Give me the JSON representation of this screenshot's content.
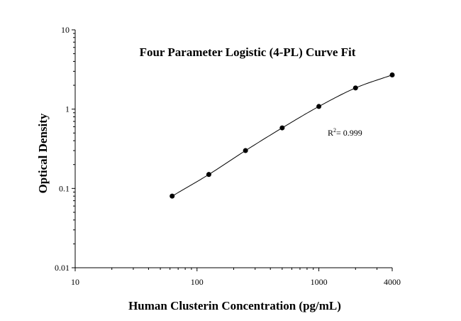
{
  "chart_data": {
    "type": "scatter",
    "title": "Four Parameter Logistic (4-PL) Curve Fit",
    "xlabel": "Human Clusterin Concentration (pg/mL)",
    "ylabel": "Optical Density",
    "xscale": "log",
    "yscale": "log",
    "xlim": [
      10,
      4000
    ],
    "ylim": [
      0.01,
      10
    ],
    "x_ticks": [
      "10",
      "100",
      "1000",
      "4000"
    ],
    "y_ticks": [
      "0.01",
      "0.1",
      "1",
      "10"
    ],
    "grid": false,
    "annotation": {
      "prefix": "R",
      "superscript": "2",
      "text": "= 0.999"
    },
    "series": [
      {
        "x": [
          62.5,
          125,
          250,
          500,
          1000,
          2000,
          4000
        ],
        "y": [
          0.08,
          0.15,
          0.3,
          0.58,
          1.08,
          1.85,
          2.7
        ],
        "style": "points+curve",
        "color": "#000000"
      }
    ]
  }
}
